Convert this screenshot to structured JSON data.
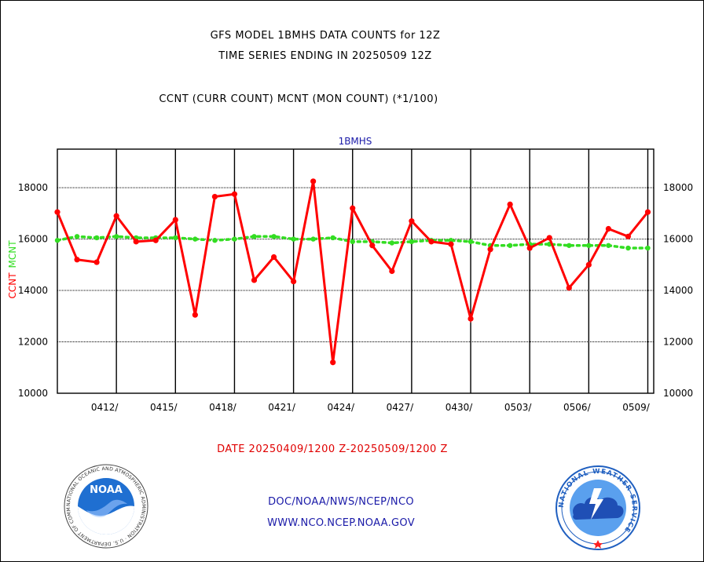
{
  "header": {
    "line1": "GFS MODEL 1BMHS DATA COUNTS for 12Z",
    "line2": "TIME SERIES ENDING IN 20250509 12Z",
    "line3": "CCNT (CURR COUNT) MCNT (MON COUNT) (*1/100)"
  },
  "footer": {
    "date_range": "DATE 20250409/1200 Z-20250509/1200 Z",
    "org": "DOC/NOAA/NWS/NCEP/NCO",
    "url": "WWW.NCO.NCEP.NOAA.GOV"
  },
  "logos": {
    "noaa": {
      "name": "noaa-logo",
      "text": "NOAA",
      "ring_text": "NATIONAL OCEANIC AND ATMOSPHERIC ADMINISTRATION · U.S. DEPARTMENT OF COMMERCE"
    },
    "nws": {
      "name": "nws-logo",
      "ring_text": "NATIONAL WEATHER SERVICE"
    }
  },
  "colors": {
    "ccnt": "#ff0000",
    "mcnt": "#33dd22",
    "subtitle": "#1a1aa8",
    "date_text": "#e00000"
  },
  "chart_data": {
    "type": "line",
    "subtitle": "1BMHS",
    "ylabel_ccnt": "CCNT",
    "ylabel_mcnt": "MCNT",
    "ylim": [
      10000,
      19500
    ],
    "yticks": [
      10000,
      12000,
      14000,
      16000,
      18000
    ],
    "xlim": [
      0,
      30.3
    ],
    "grid": true,
    "xticks": [
      {
        "label": "0412/",
        "x": 3
      },
      {
        "label": "0415/",
        "x": 6
      },
      {
        "label": "0418/",
        "x": 9
      },
      {
        "label": "0421/",
        "x": 12
      },
      {
        "label": "0424/",
        "x": 15
      },
      {
        "label": "0427/",
        "x": 18
      },
      {
        "label": "0430/",
        "x": 21
      },
      {
        "label": "0503/",
        "x": 24
      },
      {
        "label": "0506/",
        "x": 27
      },
      {
        "label": "0509/",
        "x": 30
      }
    ],
    "series": [
      {
        "name": "CCNT",
        "style": "solid",
        "values": [
          17050,
          15200,
          15100,
          16900,
          15900,
          15950,
          16750,
          13050,
          17650,
          17750,
          14400,
          15300,
          14350,
          18250,
          11200,
          17200,
          15750,
          14750,
          16700,
          15900,
          15800,
          12900,
          15600,
          17350,
          15650,
          16050,
          14100,
          15000,
          16400,
          16100,
          17050
        ]
      },
      {
        "name": "MCNT",
        "style": "dotted",
        "values": [
          15950,
          16100,
          16050,
          16100,
          16050,
          16050,
          16050,
          16000,
          15950,
          16000,
          16100,
          16100,
          16000,
          16000,
          16050,
          15900,
          15900,
          15850,
          15900,
          15950,
          15950,
          15900,
          15750,
          15750,
          15800,
          15800,
          15750,
          15750,
          15750,
          15650,
          15650
        ]
      }
    ]
  }
}
